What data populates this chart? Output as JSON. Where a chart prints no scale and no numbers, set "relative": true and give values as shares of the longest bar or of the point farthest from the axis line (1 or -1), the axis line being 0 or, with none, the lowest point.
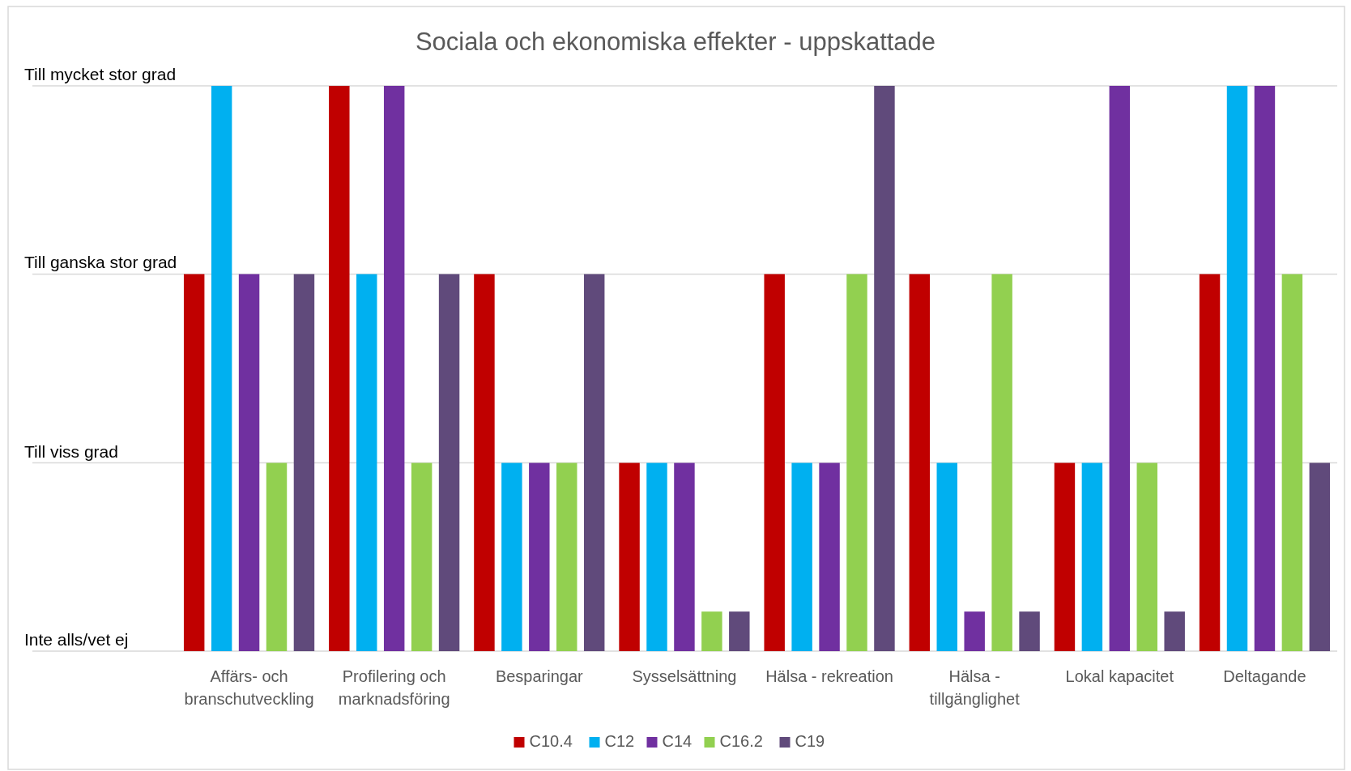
{
  "chart_data": {
    "type": "bar",
    "title": "Sociala och ekonomiska effekter - uppskattade",
    "categories": [
      "Affärs- och branschutveckling",
      "Profilering och marknadsföring",
      "Besparingar",
      "Sysselsättning",
      "Hälsa - rekreation",
      "Hälsa - tillgänglighet",
      "Lokal kapacitet",
      "Deltagande"
    ],
    "series": [
      {
        "name": "C10.4",
        "color": "#c00000",
        "values": [
          0.667,
          1,
          0.667,
          0.333,
          0.667,
          0.667,
          0.333,
          0.667
        ]
      },
      {
        "name": "C12",
        "color": "#00b0f0",
        "values": [
          1,
          0.667,
          0.333,
          0.333,
          0.333,
          0.333,
          0.333,
          1
        ]
      },
      {
        "name": "C14",
        "color": "#7030a0",
        "values": [
          0.667,
          1,
          0.333,
          0.333,
          0.333,
          0.07,
          1,
          1
        ]
      },
      {
        "name": "C16.2",
        "color": "#92d050",
        "values": [
          0.333,
          0.333,
          0.333,
          0.07,
          0.667,
          0.667,
          0.333,
          0.667
        ]
      },
      {
        "name": "C19",
        "color": "#604a7b",
        "values": [
          0.667,
          0.667,
          0.667,
          0.07,
          1,
          0.07,
          0.07,
          0.333
        ]
      }
    ],
    "relative": true,
    "ref_lines": [
      {
        "axis": "y",
        "value": 0,
        "label": "Inte alls/vet ej",
        "color": "#d9d9d9"
      },
      {
        "axis": "y",
        "value": 0.333,
        "label": "Till viss grad",
        "color": "#d9d9d9"
      },
      {
        "axis": "y",
        "value": 0.667,
        "label": "Till ganska stor grad",
        "color": "#d9d9d9"
      },
      {
        "axis": "y",
        "value": 1,
        "label": "Till mycket stor grad",
        "color": "#d9d9d9"
      }
    ],
    "legend": "bottom"
  }
}
